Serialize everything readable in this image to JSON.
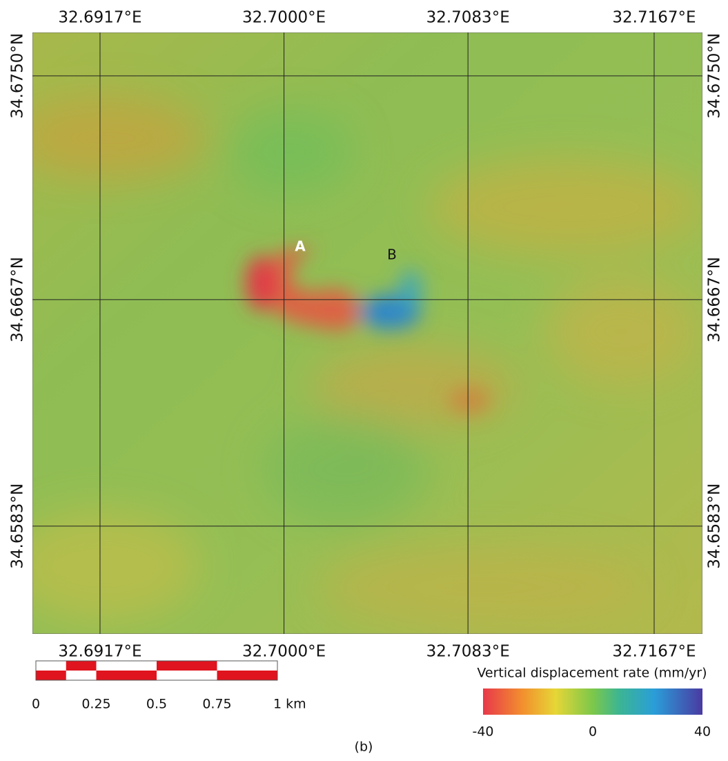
{
  "map": {
    "lon_ticks": [
      {
        "value": 32.6917,
        "label": "32.6917°E"
      },
      {
        "value": 32.7,
        "label": "32.7000°E"
      },
      {
        "value": 32.7083,
        "label": "32.7083°E"
      },
      {
        "value": 32.7167,
        "label": "32.7167°E"
      }
    ],
    "lat_ticks": [
      {
        "value": 34.675,
        "label": "34.6750°N"
      },
      {
        "value": 34.6667,
        "label": "34.6667°N"
      },
      {
        "value": 34.6583,
        "label": "34.6583°N"
      }
    ],
    "lonlim": [
      32.68865,
      32.71888
    ],
    "latlim": [
      34.6543,
      34.67661
    ],
    "annotations": [
      "A",
      "B"
    ]
  },
  "scale_bar": {
    "ticks": [
      0,
      0.25,
      0.5,
      0.75,
      {
        "value": 1,
        "label": "1 km"
      }
    ]
  },
  "colorbar": {
    "title": "Vertical displacement rate (mm/yr)",
    "lim": [
      -40,
      40
    ],
    "ticks": [
      -40,
      0,
      40
    ]
  },
  "caption": "(b)"
}
